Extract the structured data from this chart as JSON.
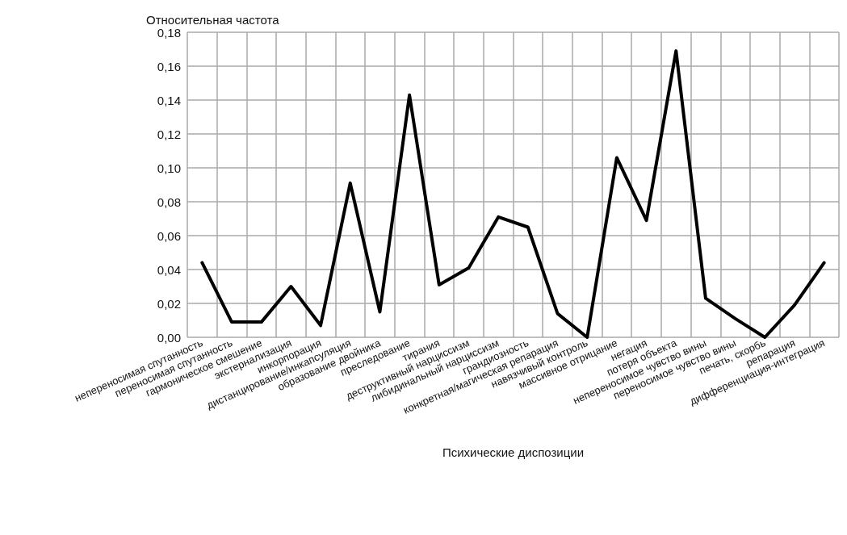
{
  "chart_data": {
    "type": "line",
    "ylabel": "Относительная частота",
    "xlabel": "Психические диспозиции",
    "categories": [
      "непереносимая спутанность",
      "переносимая спутанность",
      "гармоническое смешение",
      "экстернализация",
      "инкорпорация",
      "дистанцирование/инкапсуляция",
      "образование двойника",
      "преследование",
      "тирания",
      "деструктивный нарциссизм",
      "либидинальный нарциссизм",
      "грандиозность",
      "конкретная/магическая репарация",
      "навязчивый контроль",
      "массивное отрицание",
      "негация",
      "потеря объекта",
      "непереносимое чувство вины",
      "переносимое чувство вины",
      "печать, скорбь",
      "репарация",
      "дифференциация-интеграция"
    ],
    "series": [
      {
        "color": "#000000",
        "values": [
          0.044,
          0.009,
          0.009,
          0.03,
          0.007,
          0.091,
          0.015,
          0.143,
          0.031,
          0.041,
          0.071,
          0.065,
          0.014,
          0,
          0.106,
          0.069,
          0.169,
          0.023,
          0.011,
          0,
          0.019,
          0.044
        ]
      }
    ],
    "ylim": [
      0,
      0.18
    ],
    "yticks": [
      {
        "value": 0,
        "label": "0,00"
      },
      {
        "value": 0.02,
        "label": "0,02"
      },
      {
        "value": 0.04,
        "label": "0,04"
      },
      {
        "value": 0.06,
        "label": "0,06"
      },
      {
        "value": 0.08,
        "label": "0,08"
      },
      {
        "value": 0.1,
        "label": "0,10"
      },
      {
        "value": 0.12,
        "label": "0,12"
      },
      {
        "value": 0.14,
        "label": "0,14"
      },
      {
        "value": 0.16,
        "label": "0,16"
      },
      {
        "value": 0.18,
        "label": "0,18"
      }
    ],
    "grid": true,
    "marker": "none",
    "line_style": "solid"
  }
}
